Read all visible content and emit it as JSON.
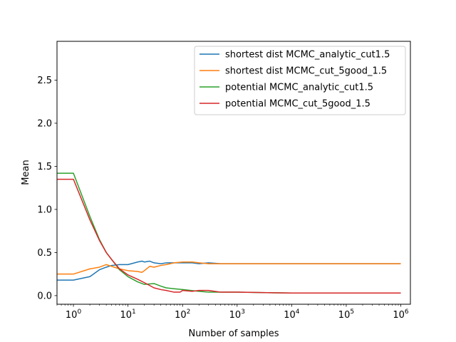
{
  "chart_data": {
    "type": "line",
    "title": "",
    "xlabel": "Number of samples",
    "ylabel": "Mean",
    "xscale": "log",
    "xlim": [
      0.5,
      1500000
    ],
    "ylim": [
      -0.1,
      2.95
    ],
    "grid": false,
    "legend_position": "top-right",
    "x_ticks": [
      {
        "value": 1,
        "base": "10",
        "exp": "0"
      },
      {
        "value": 10,
        "base": "10",
        "exp": "1"
      },
      {
        "value": 100,
        "base": "10",
        "exp": "2"
      },
      {
        "value": 1000,
        "base": "10",
        "exp": "3"
      },
      {
        "value": 10000,
        "base": "10",
        "exp": "4"
      },
      {
        "value": 100000,
        "base": "10",
        "exp": "5"
      },
      {
        "value": 1000000,
        "base": "10",
        "exp": "6"
      }
    ],
    "y_ticks": [
      {
        "value": 0.0,
        "label": "0.0"
      },
      {
        "value": 0.5,
        "label": "0.5"
      },
      {
        "value": 1.0,
        "label": "1.0"
      },
      {
        "value": 1.5,
        "label": "1.5"
      },
      {
        "value": 2.0,
        "label": "2.0"
      },
      {
        "value": 2.5,
        "label": "2.5"
      }
    ],
    "series": [
      {
        "name": "shortest dist MCMC_analytic_cut1.5",
        "color": "#1f77b4",
        "points": [
          [
            0.5,
            0.18
          ],
          [
            1,
            0.18
          ],
          [
            2,
            0.22
          ],
          [
            3,
            0.3
          ],
          [
            4,
            0.33
          ],
          [
            5,
            0.35
          ],
          [
            7,
            0.36
          ],
          [
            10,
            0.36
          ],
          [
            15,
            0.39
          ],
          [
            18,
            0.4
          ],
          [
            20,
            0.39
          ],
          [
            25,
            0.4
          ],
          [
            30,
            0.38
          ],
          [
            40,
            0.37
          ],
          [
            50,
            0.38
          ],
          [
            70,
            0.38
          ],
          [
            100,
            0.38
          ],
          [
            150,
            0.38
          ],
          [
            200,
            0.37
          ],
          [
            300,
            0.38
          ],
          [
            500,
            0.37
          ],
          [
            1000,
            0.37
          ],
          [
            10000,
            0.37
          ],
          [
            100000,
            0.37
          ],
          [
            1000000,
            0.37
          ]
        ]
      },
      {
        "name": "shortest dist MCMC_cut_5good_1.5",
        "color": "#ff7f0e",
        "points": [
          [
            0.5,
            0.25
          ],
          [
            1,
            0.25
          ],
          [
            2,
            0.31
          ],
          [
            3,
            0.33
          ],
          [
            4,
            0.36
          ],
          [
            5,
            0.34
          ],
          [
            7,
            0.31
          ],
          [
            10,
            0.29
          ],
          [
            15,
            0.28
          ],
          [
            18,
            0.27
          ],
          [
            20,
            0.29
          ],
          [
            25,
            0.34
          ],
          [
            30,
            0.33
          ],
          [
            40,
            0.35
          ],
          [
            50,
            0.36
          ],
          [
            70,
            0.38
          ],
          [
            100,
            0.39
          ],
          [
            150,
            0.39
          ],
          [
            200,
            0.38
          ],
          [
            300,
            0.37
          ],
          [
            500,
            0.37
          ],
          [
            1000,
            0.37
          ],
          [
            10000,
            0.37
          ],
          [
            100000,
            0.37
          ],
          [
            1000000,
            0.37
          ]
        ]
      },
      {
        "name": "potential MCMC_analytic_cut1.5",
        "color": "#2ca02c",
        "points": [
          [
            0.5,
            1.42
          ],
          [
            1,
            1.42
          ],
          [
            2,
            0.92
          ],
          [
            3,
            0.65
          ],
          [
            4,
            0.5
          ],
          [
            5,
            0.42
          ],
          [
            7,
            0.3
          ],
          [
            10,
            0.22
          ],
          [
            15,
            0.16
          ],
          [
            20,
            0.13
          ],
          [
            30,
            0.14
          ],
          [
            40,
            0.11
          ],
          [
            50,
            0.09
          ],
          [
            70,
            0.08
          ],
          [
            100,
            0.07
          ],
          [
            200,
            0.05
          ],
          [
            300,
            0.04
          ],
          [
            500,
            0.04
          ],
          [
            1000,
            0.04
          ],
          [
            10000,
            0.03
          ],
          [
            100000,
            0.03
          ],
          [
            1000000,
            0.03
          ]
        ]
      },
      {
        "name": "potential MCMC_cut_5good_1.5",
        "color": "#d62728",
        "points": [
          [
            0.5,
            1.35
          ],
          [
            1,
            1.35
          ],
          [
            2,
            0.88
          ],
          [
            3,
            0.64
          ],
          [
            4,
            0.5
          ],
          [
            5,
            0.42
          ],
          [
            7,
            0.31
          ],
          [
            10,
            0.24
          ],
          [
            15,
            0.19
          ],
          [
            20,
            0.15
          ],
          [
            30,
            0.09
          ],
          [
            40,
            0.07
          ],
          [
            50,
            0.06
          ],
          [
            70,
            0.04
          ],
          [
            90,
            0.04
          ],
          [
            100,
            0.06
          ],
          [
            150,
            0.05
          ],
          [
            200,
            0.06
          ],
          [
            300,
            0.06
          ],
          [
            500,
            0.04
          ],
          [
            1000,
            0.04
          ],
          [
            10000,
            0.03
          ],
          [
            100000,
            0.03
          ],
          [
            1000000,
            0.03
          ]
        ]
      }
    ]
  }
}
